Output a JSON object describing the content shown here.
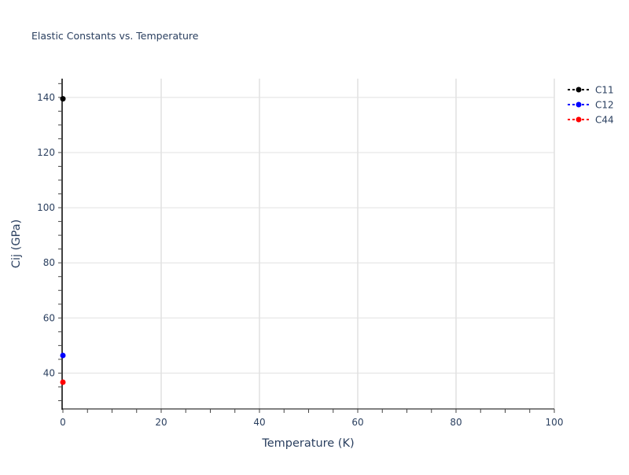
{
  "chart_data": {
    "type": "line",
    "title": "Elastic Constants vs. Temperature",
    "xlabel": "Temperature (K)",
    "ylabel": "Cij (GPa)",
    "xlim": [
      0,
      100
    ],
    "ylim": [
      27,
      146.8
    ],
    "xticks": [
      0,
      20,
      40,
      60,
      80,
      100
    ],
    "yticks": [
      40,
      60,
      80,
      100,
      120,
      140
    ],
    "grid": true,
    "legend_position": "top-right",
    "line_style": "dotted",
    "series": [
      {
        "name": "C11",
        "color": "#000000",
        "x": [
          0
        ],
        "y": [
          139.5
        ]
      },
      {
        "name": "C12",
        "color": "#0000ff",
        "x": [
          0
        ],
        "y": [
          46.4
        ]
      },
      {
        "name": "C44",
        "color": "#ff0000",
        "x": [
          0
        ],
        "y": [
          36.7
        ]
      }
    ]
  }
}
